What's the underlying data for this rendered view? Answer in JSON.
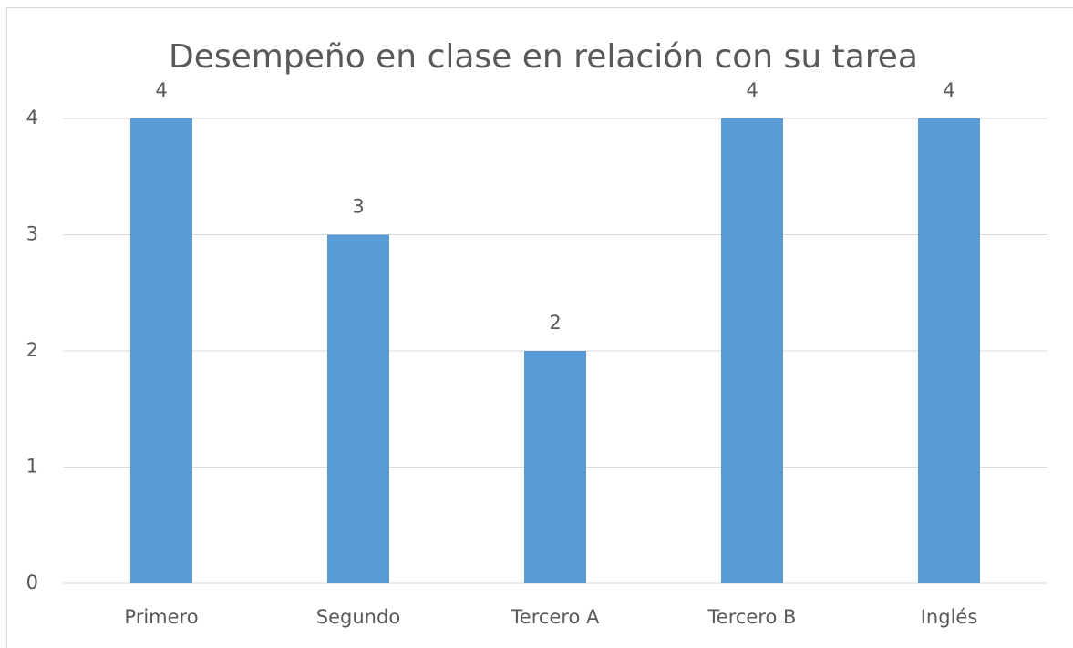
{
  "chart_data": {
    "type": "bar",
    "title": "Desempeño en clase en relación con su tarea",
    "categories": [
      "Primero",
      "Segundo",
      "Tercero A",
      "Tercero B",
      "Inglés"
    ],
    "values": [
      4,
      3,
      2,
      4,
      4
    ],
    "color": "#5b9bd5",
    "ylim": [
      0,
      4
    ],
    "yticks": [
      0,
      1,
      2,
      3,
      4
    ],
    "grid": true
  }
}
